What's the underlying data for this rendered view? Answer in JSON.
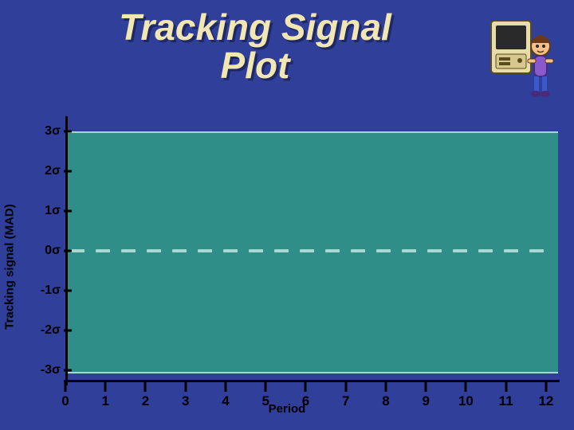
{
  "slide": {
    "background_color": "#2f3f9a",
    "title": {
      "line1": "Tracking Signal",
      "line2": "Plot",
      "fontsize": 46,
      "color": "#f2e6b3",
      "shadow_color": "rgba(0,0,0,0.35)"
    },
    "cartoon_present": true
  },
  "chart": {
    "type": "line-frame",
    "y_axis": {
      "label": "Tracking signal (MAD)",
      "label_fontsize": 15,
      "label_color": "#000000",
      "ticks": [
        "3σ",
        "2σ",
        "1σ",
        "0σ",
        "-1σ",
        "-2σ",
        "-3σ"
      ],
      "tick_values": [
        3,
        2,
        1,
        0,
        -1,
        -2,
        -3
      ],
      "tick_fontsize": 16,
      "tick_color": "#000000",
      "min": -3.3,
      "max": 3.3
    },
    "x_axis": {
      "label": "Period",
      "label_fontsize": 15,
      "label_color": "#000000",
      "ticks": [
        "0",
        "1",
        "2",
        "3",
        "4",
        "5",
        "6",
        "7",
        "8",
        "9",
        "10",
        "11",
        "12"
      ],
      "tick_values": [
        0,
        1,
        2,
        3,
        4,
        5,
        6,
        7,
        8,
        9,
        10,
        11,
        12
      ],
      "tick_fontsize": 17,
      "tick_color": "#000000",
      "min": 0,
      "max": 12.3
    },
    "band": {
      "from_value": -3,
      "to_value": 3,
      "fill_color": "#2f8f88",
      "border_color": "#a8d8d0",
      "border_width": 2
    },
    "zero_line": {
      "value": 0,
      "color": "#a8d8d0",
      "dash_width": 18,
      "dash_gap": 14,
      "thickness": 4
    },
    "axis_color": "#000000",
    "axis_width": 3
  }
}
